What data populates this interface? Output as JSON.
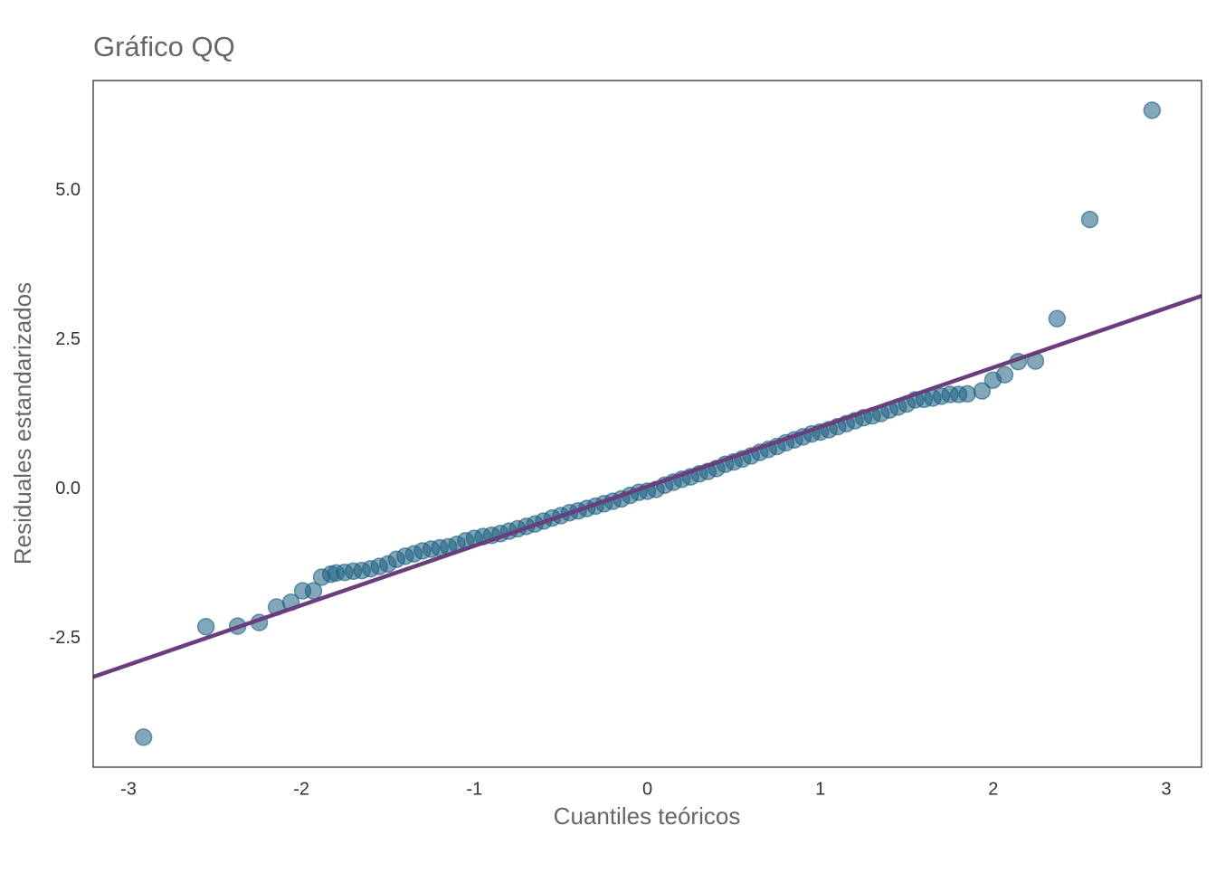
{
  "chart_data": {
    "type": "scatter",
    "title": "Gráfico QQ",
    "x_label": "Cuantiles teóricos",
    "y_label": "Residuales estandarizados",
    "xlim": [
      -3.204,
      3.204
    ],
    "ylim": [
      -4.652,
      6.848
    ],
    "xticks": [
      -3,
      -2,
      -1,
      0,
      1,
      2,
      3
    ],
    "yticks": [
      {
        "value": -2.5,
        "label": "-2.5"
      },
      {
        "value": 0,
        "label": "0.0"
      },
      {
        "value": 2.5,
        "label": "2.5"
      },
      {
        "value": 5,
        "label": "5.0"
      }
    ],
    "grid": false,
    "color": "#1b5e80",
    "reference_line": {
      "x": [
        -3.204,
        3.204
      ],
      "y": [
        -3.14,
        3.24
      ],
      "color": "#6a3d7c"
    },
    "x": [
      -2.913,
      -2.552,
      -2.369,
      -2.244,
      -2.144,
      -2.061,
      -1.993,
      -1.93,
      -1.883,
      -1.83,
      -1.8,
      -1.75,
      -1.7,
      -1.65,
      -1.6,
      -1.55,
      -1.5,
      -1.45,
      -1.4,
      -1.35,
      -1.3,
      -1.25,
      -1.2,
      -1.15,
      -1.1,
      -1.05,
      -1.0,
      -0.95,
      -0.9,
      -0.85,
      -0.8,
      -0.75,
      -0.7,
      -0.65,
      -0.6,
      -0.55,
      -0.5,
      -0.45,
      -0.4,
      -0.35,
      -0.3,
      -0.25,
      -0.2,
      -0.15,
      -0.1,
      -0.05,
      0.0,
      0.05,
      0.1,
      0.15,
      0.2,
      0.25,
      0.3,
      0.35,
      0.4,
      0.45,
      0.5,
      0.55,
      0.6,
      0.65,
      0.7,
      0.75,
      0.8,
      0.85,
      0.9,
      0.95,
      1.0,
      1.05,
      1.1,
      1.15,
      1.2,
      1.25,
      1.3,
      1.35,
      1.4,
      1.45,
      1.5,
      1.55,
      1.6,
      1.65,
      1.7,
      1.75,
      1.8,
      1.85,
      1.935,
      1.998,
      2.066,
      2.144,
      2.244,
      2.369,
      2.558,
      2.918
    ],
    "y": [
      -4.15,
      -2.3,
      -2.29,
      -2.23,
      -1.97,
      -1.89,
      -1.7,
      -1.7,
      -1.47,
      -1.42,
      -1.4,
      -1.39,
      -1.37,
      -1.36,
      -1.33,
      -1.29,
      -1.25,
      -1.17,
      -1.12,
      -1.08,
      -1.03,
      -1.0,
      -0.98,
      -0.96,
      -0.92,
      -0.86,
      -0.82,
      -0.79,
      -0.77,
      -0.74,
      -0.7,
      -0.66,
      -0.62,
      -0.58,
      -0.53,
      -0.48,
      -0.44,
      -0.39,
      -0.36,
      -0.32,
      -0.28,
      -0.24,
      -0.2,
      -0.16,
      -0.1,
      -0.05,
      -0.03,
      0.0,
      0.07,
      0.12,
      0.17,
      0.21,
      0.26,
      0.3,
      0.35,
      0.42,
      0.46,
      0.51,
      0.56,
      0.62,
      0.67,
      0.72,
      0.78,
      0.83,
      0.88,
      0.93,
      0.96,
      1.0,
      1.05,
      1.1,
      1.15,
      1.2,
      1.23,
      1.27,
      1.33,
      1.38,
      1.43,
      1.5,
      1.51,
      1.53,
      1.56,
      1.59,
      1.59,
      1.6,
      1.65,
      1.83,
      1.92,
      2.14,
      2.15,
      2.86,
      4.52,
      6.35
    ]
  }
}
